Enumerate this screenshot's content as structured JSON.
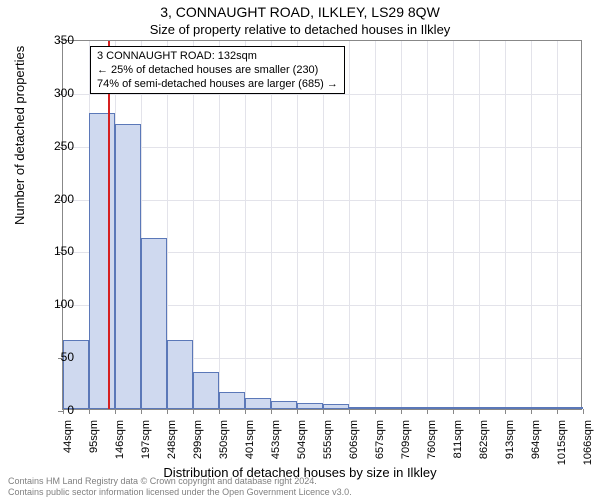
{
  "title": "3, CONNAUGHT ROAD, ILKLEY, LS29 8QW",
  "subtitle": "Size of property relative to detached houses in Ilkley",
  "chart": {
    "type": "histogram",
    "y_axis": {
      "title": "Number of detached properties",
      "min": 0,
      "max": 350,
      "tick_step": 50,
      "ticks": [
        0,
        50,
        100,
        150,
        200,
        250,
        300,
        350
      ]
    },
    "x_axis": {
      "title": "Distribution of detached houses by size in Ilkley",
      "tick_labels": [
        "44sqm",
        "95sqm",
        "146sqm",
        "197sqm",
        "248sqm",
        "299sqm",
        "350sqm",
        "401sqm",
        "453sqm",
        "504sqm",
        "555sqm",
        "606sqm",
        "657sqm",
        "709sqm",
        "760sqm",
        "811sqm",
        "862sqm",
        "913sqm",
        "964sqm",
        "1015sqm",
        "1066sqm"
      ]
    },
    "bars": [
      65,
      280,
      270,
      162,
      65,
      35,
      16,
      10,
      8,
      6,
      5,
      2,
      2,
      0,
      0,
      2,
      0,
      0,
      2,
      0
    ],
    "bar_color": "#cfd9ef",
    "bar_border_color": "#5b78b8",
    "marker": {
      "bin_index": 1,
      "position_in_bin": 0.72,
      "color": "#d62020"
    },
    "background_color": "#ffffff",
    "grid_color": "#e3e3ea",
    "axis_color": "#888888",
    "title_fontsize": 14,
    "subtitle_fontsize": 13,
    "axis_title_fontsize": 13,
    "tick_fontsize": 12
  },
  "info_box": {
    "line1": "3 CONNAUGHT ROAD: 132sqm",
    "line2": "← 25% of detached houses are smaller (230)",
    "line3": "74% of semi-detached houses are larger (685) →"
  },
  "footer": {
    "line1": "Contains HM Land Registry data © Crown copyright and database right 2024.",
    "line2": "Contains public sector information licensed under the Open Government Licence v3.0."
  }
}
